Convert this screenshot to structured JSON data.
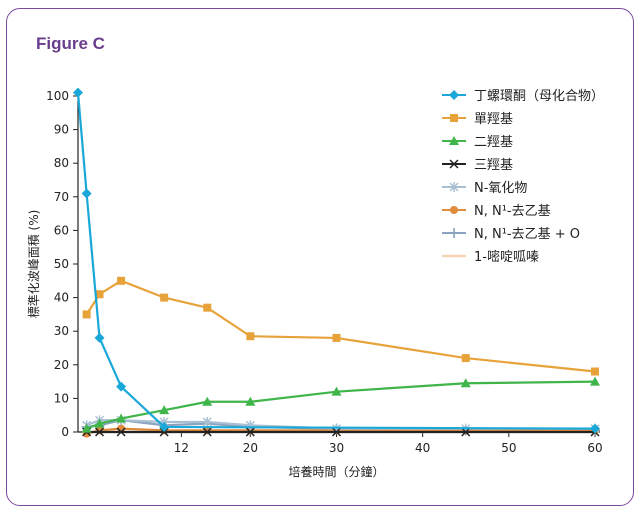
{
  "figure": {
    "title": "Figure C"
  },
  "chart_data": {
    "type": "line",
    "xlabel": "培養時間（分鐘）",
    "ylabel": "標準化波峰面積 (%)",
    "xlim": [
      0,
      60
    ],
    "ylim": [
      0,
      100
    ],
    "xticks": [
      12,
      20,
      30,
      40,
      50,
      60
    ],
    "yticks": [
      0,
      10,
      20,
      30,
      40,
      50,
      60,
      70,
      80,
      90,
      100
    ],
    "grid": false,
    "legend_position": "top-right",
    "series": [
      {
        "name": "丁螺環酮（母化合物）",
        "color": "#1aa8d8",
        "marker": "diamond",
        "x": [
          0,
          1,
          2.5,
          5,
          10,
          60
        ],
        "y": [
          101,
          71,
          28,
          13.5,
          1.5,
          1
        ]
      },
      {
        "name": "單羥基",
        "color": "#e8a23a",
        "marker": "square",
        "x": [
          1,
          2.5,
          5,
          10,
          15,
          20,
          30,
          45,
          60
        ],
        "y": [
          35,
          41,
          45,
          40,
          37,
          28.5,
          28,
          22,
          18
        ]
      },
      {
        "name": "二羥基",
        "color": "#3fb54a",
        "marker": "triangle",
        "x": [
          1,
          2.5,
          5,
          10,
          15,
          20,
          30,
          45,
          60
        ],
        "y": [
          1,
          2.5,
          4,
          6.5,
          9,
          9,
          12,
          14.5,
          15
        ]
      },
      {
        "name": "三羥基",
        "color": "#222222",
        "marker": "x",
        "x": [
          1,
          2.5,
          5,
          10,
          15,
          20,
          30,
          45,
          60
        ],
        "y": [
          0,
          0,
          0,
          0,
          0,
          0,
          0,
          0,
          0
        ]
      },
      {
        "name": "N-氧化物",
        "color": "#a9bfd3",
        "marker": "star",
        "x": [
          1,
          2.5,
          5,
          10,
          15,
          20,
          30,
          45,
          60
        ],
        "y": [
          2,
          3.5,
          3.5,
          3,
          3,
          2,
          1,
          1,
          1
        ]
      },
      {
        "name": "N, N¹-去乙基",
        "color": "#e08a3c",
        "marker": "circle",
        "x": [
          1,
          2.5,
          5,
          10,
          15,
          20,
          30,
          45,
          60
        ],
        "y": [
          -0.5,
          0.5,
          1,
          0.5,
          0.5,
          0.5,
          0.5,
          0.5,
          0.5
        ]
      },
      {
        "name": "N, N¹-去乙基 + O",
        "color": "#8aa4bf",
        "marker": "plus",
        "x": [
          1,
          2.5,
          5,
          10,
          15,
          20,
          30,
          45,
          60
        ],
        "y": [
          1.5,
          2,
          3.5,
          2,
          2.5,
          1.5,
          1,
          0.5,
          0.5
        ]
      },
      {
        "name": "1-嘧啶呱嗪",
        "color": "#f5d5b8",
        "marker": "none",
        "x": [
          1,
          2.5,
          5,
          10,
          15,
          20,
          30,
          45,
          60
        ],
        "y": [
          0,
          0,
          0,
          0,
          0,
          0,
          0,
          0,
          0
        ]
      }
    ]
  }
}
